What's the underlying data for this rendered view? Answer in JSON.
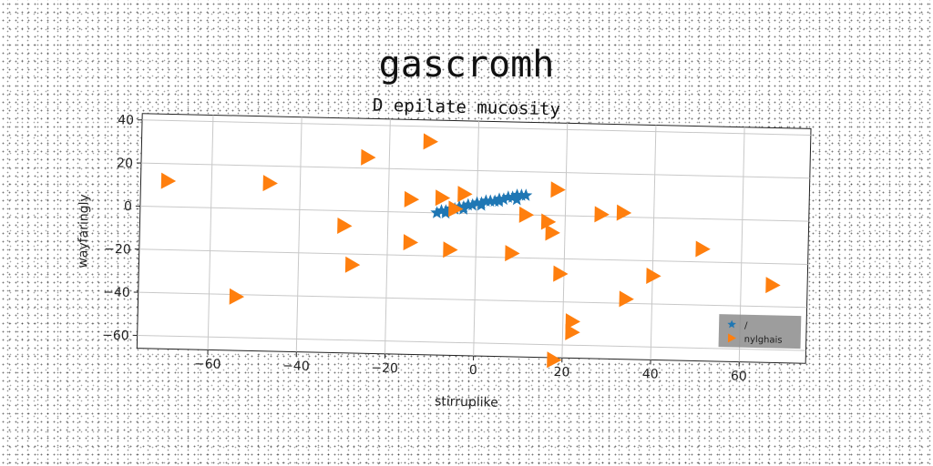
{
  "chart_data": {
    "type": "scatter",
    "title": "gascromh",
    "subtitle": "D epilate mucosity",
    "xlabel": "stirruplike",
    "ylabel": "wayfaringly",
    "xlim": [
      -76,
      75
    ],
    "ylim": [
      -66,
      43
    ],
    "xticks": [
      -60,
      -40,
      -20,
      0,
      20,
      40,
      60
    ],
    "yticks": [
      40,
      20,
      0,
      -20,
      -40,
      -60
    ],
    "xtick_labels": [
      "−60",
      "−40",
      "−20",
      "0",
      "20",
      "40",
      "60"
    ],
    "ytick_labels": [
      "40",
      "20",
      "0",
      "−20",
      "−40",
      "−60"
    ],
    "grid": true,
    "legend_position": "lower-right",
    "series": [
      {
        "name": "/",
        "marker": "star",
        "color": "#1f77b4",
        "points": [
          [
            -9,
            0
          ],
          [
            -8,
            1
          ],
          [
            -7,
            1
          ],
          [
            -6,
            2
          ],
          [
            -5,
            2
          ],
          [
            -4,
            3
          ],
          [
            -3,
            3
          ],
          [
            -2,
            4
          ],
          [
            -1,
            4
          ],
          [
            0,
            5
          ],
          [
            1,
            5
          ],
          [
            2,
            6
          ],
          [
            3,
            6
          ],
          [
            4,
            6
          ],
          [
            5,
            7
          ],
          [
            6,
            7
          ],
          [
            7,
            8
          ],
          [
            8,
            8
          ],
          [
            9,
            9
          ],
          [
            10,
            9
          ],
          [
            11,
            9
          ],
          [
            -7,
            0
          ],
          [
            -3,
            2
          ],
          [
            1,
            4
          ],
          [
            5,
            6
          ],
          [
            9,
            7
          ]
        ]
      },
      {
        "name": "nylghais",
        "marker": "triangle-right",
        "color": "#ff7f0e",
        "points": [
          [
            -70,
            12
          ],
          [
            -47,
            12
          ],
          [
            -25,
            25
          ],
          [
            -11,
            33
          ],
          [
            -15,
            6
          ],
          [
            -8,
            7
          ],
          [
            -3,
            9
          ],
          [
            -5,
            2
          ],
          [
            18,
            12
          ],
          [
            11,
            0
          ],
          [
            16,
            -3
          ],
          [
            17,
            -8
          ],
          [
            28,
            1
          ],
          [
            33,
            2
          ],
          [
            -30,
            -7
          ],
          [
            -15,
            -14
          ],
          [
            -6,
            -17
          ],
          [
            8,
            -18
          ],
          [
            19,
            -27
          ],
          [
            51,
            -14
          ],
          [
            40,
            -27
          ],
          [
            34,
            -38
          ],
          [
            67,
            -30
          ],
          [
            -28,
            -25
          ],
          [
            -54,
            -41
          ],
          [
            22,
            -49
          ],
          [
            22,
            -54
          ],
          [
            18,
            -67
          ]
        ]
      }
    ]
  }
}
